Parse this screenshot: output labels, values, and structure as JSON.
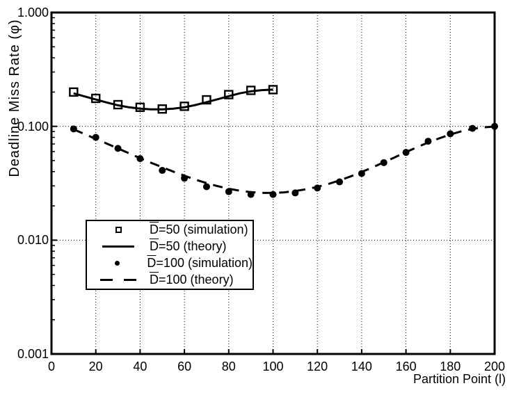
{
  "colors": {
    "foreground": "#000000",
    "background": "#ffffff"
  },
  "chart_data": {
    "type": "line",
    "title": "",
    "xlabel": "Partition Point (l)",
    "ylabel": "Deadline Miss Rate (φ)",
    "grid": {
      "x": [
        20,
        40,
        60,
        80,
        100,
        120,
        140,
        160,
        180
      ],
      "y": [
        0.1,
        0.01
      ]
    },
    "x_axis": {
      "min": 0,
      "max": 200,
      "ticks": [
        {
          "v": 0,
          "label": "0"
        },
        {
          "v": 20,
          "label": "20"
        },
        {
          "v": 40,
          "label": "40"
        },
        {
          "v": 60,
          "label": "60"
        },
        {
          "v": 80,
          "label": "80"
        },
        {
          "v": 100,
          "label": "100"
        },
        {
          "v": 120,
          "label": "120"
        },
        {
          "v": 140,
          "label": "140"
        },
        {
          "v": 160,
          "label": "160"
        },
        {
          "v": 180,
          "label": "180"
        },
        {
          "v": 200,
          "label": "200"
        }
      ]
    },
    "y_axis": {
      "scale": "log",
      "min": 0.001,
      "max": 1.0,
      "ticks": [
        {
          "v": 1.0,
          "label": "1.000"
        },
        {
          "v": 0.1,
          "label": "0.100"
        },
        {
          "v": 0.01,
          "label": "0.010"
        },
        {
          "v": 0.001,
          "label": "0.001"
        }
      ]
    },
    "series": [
      {
        "name": "D=50 (simulation)",
        "type": "scatter",
        "marker": "open-square",
        "x": [
          10,
          20,
          30,
          40,
          50,
          60,
          70,
          80,
          90,
          100
        ],
        "y": [
          0.2,
          0.176,
          0.155,
          0.147,
          0.142,
          0.15,
          0.171,
          0.19,
          0.207,
          0.21
        ]
      },
      {
        "name": "D=50 (theory)",
        "type": "line",
        "style": "solid",
        "x": [
          10,
          15,
          20,
          25,
          30,
          35,
          40,
          45,
          50,
          55,
          60,
          65,
          70,
          75,
          80,
          85,
          90,
          95,
          100
        ],
        "y": [
          0.195,
          0.183,
          0.172,
          0.162,
          0.153,
          0.147,
          0.143,
          0.141,
          0.141,
          0.143,
          0.147,
          0.154,
          0.163,
          0.173,
          0.184,
          0.195,
          0.203,
          0.208,
          0.21
        ]
      },
      {
        "name": "D=100 (simulation)",
        "type": "scatter",
        "marker": "filled-circle",
        "x": [
          10,
          20,
          30,
          40,
          50,
          60,
          70,
          80,
          90,
          100,
          110,
          120,
          130,
          140,
          150,
          160,
          170,
          180,
          190,
          200
        ],
        "y": [
          0.095,
          0.08,
          0.064,
          0.052,
          0.041,
          0.035,
          0.0295,
          0.0267,
          0.0252,
          0.0252,
          0.026,
          0.0287,
          0.0325,
          0.0385,
          0.048,
          0.059,
          0.074,
          0.086,
          0.096,
          0.1
        ]
      },
      {
        "name": "D=100 (theory)",
        "type": "line",
        "style": "dashed",
        "x": [
          10,
          15,
          20,
          25,
          30,
          35,
          40,
          45,
          50,
          55,
          60,
          65,
          70,
          75,
          80,
          85,
          90,
          95,
          100,
          105,
          110,
          115,
          120,
          125,
          130,
          135,
          140,
          145,
          150,
          155,
          160,
          165,
          170,
          175,
          180,
          185,
          190,
          195,
          200
        ],
        "y": [
          0.094,
          0.0855,
          0.0775,
          0.0705,
          0.064,
          0.058,
          0.0525,
          0.0478,
          0.0437,
          0.04,
          0.0368,
          0.034,
          0.0317,
          0.0298,
          0.0283,
          0.0272,
          0.0264,
          0.026,
          0.026,
          0.0263,
          0.027,
          0.028,
          0.0294,
          0.0312,
          0.0335,
          0.0363,
          0.0397,
          0.0437,
          0.0483,
          0.0535,
          0.0593,
          0.0655,
          0.072,
          0.0785,
          0.0848,
          0.0905,
          0.095,
          0.098,
          0.0995
        ]
      }
    ],
    "legend": {
      "position": "inside-left-middle",
      "items": [
        {
          "marker": "open-square",
          "d": "D",
          "rest": "=50 (simulation)"
        },
        {
          "marker": "solid-line",
          "d": "D",
          "rest": "=50 (theory)"
        },
        {
          "marker": "filled-circle",
          "d": "D",
          "rest": "=100 (simulation)"
        },
        {
          "marker": "dashed-line",
          "d": "D",
          "rest": "=100 (theory)"
        }
      ]
    }
  }
}
